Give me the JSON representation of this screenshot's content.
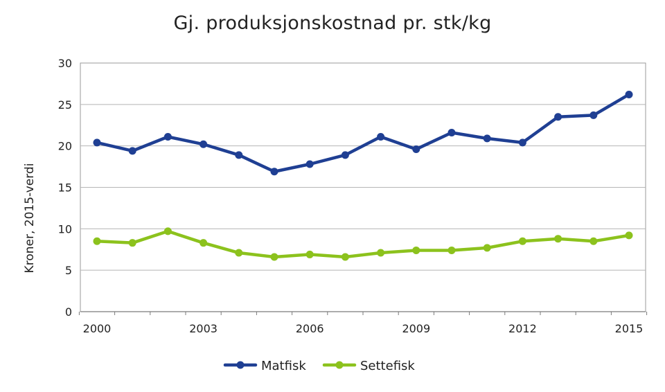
{
  "chart_data": {
    "type": "line",
    "title": "Gj. produksjonskostnad pr. stk/kg",
    "xlabel": "",
    "ylabel": "Kroner, 2015-verdi",
    "x": [
      2000,
      2001,
      2002,
      2003,
      2004,
      2005,
      2006,
      2007,
      2008,
      2009,
      2010,
      2011,
      2012,
      2013,
      2014,
      2015
    ],
    "x_tick_labels": [
      "2000",
      "2003",
      "2006",
      "2009",
      "2012",
      "2015"
    ],
    "y_tick_labels": [
      "0",
      "5",
      "10",
      "15",
      "20",
      "25",
      "30"
    ],
    "ylim": [
      0,
      30
    ],
    "grid": true,
    "legend_position": "bottom",
    "series": [
      {
        "name": "Matfisk",
        "color": "#1f3f93",
        "values": [
          20.4,
          19.4,
          21.1,
          20.2,
          18.9,
          16.9,
          17.8,
          18.9,
          21.1,
          19.6,
          21.6,
          20.9,
          20.4,
          23.5,
          23.7,
          26.2
        ]
      },
      {
        "name": "Settefisk",
        "color": "#8cc21d",
        "values": [
          8.5,
          8.3,
          9.7,
          8.3,
          7.1,
          6.6,
          6.9,
          6.6,
          7.1,
          7.4,
          7.4,
          7.7,
          8.5,
          8.8,
          8.5,
          9.2
        ]
      }
    ]
  }
}
